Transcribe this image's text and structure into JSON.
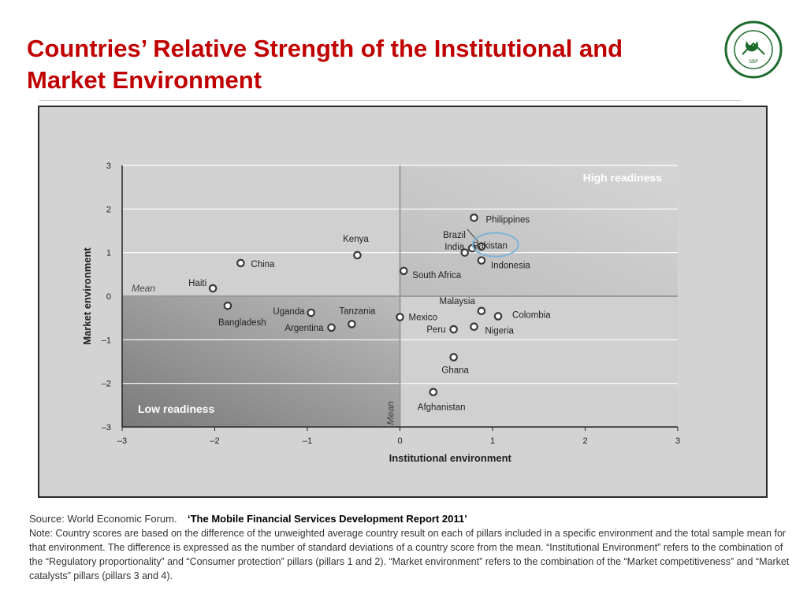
{
  "slide": {
    "title": "Countries’ Relative Strength of the Institutional and Market Environment",
    "seal_text": "STATE BANK OF PAKISTAN",
    "source_label": "Source: World Economic Forum.",
    "source_title": "‘The Mobile Financial Services Development Report 2011’",
    "note": "Note: Country scores are based on the difference of the unweighted average country result on each of pillars included in a specific environment and the total sample mean for that environment. The difference is expressed as the number of standard deviations of a country score from the mean. “Institutional Environment” refers to the combination of the “Regulatory proportionality” and “Consumer protection” pillars (pillars 1 and 2). “Market environment” refers to the combination of the “Market competitiveness” and “Market catalysts” pillars (pillars 3 and 4)."
  },
  "colors": {
    "title": "#c00000",
    "marker_fill": "#ffffff",
    "marker_stroke": "#3a3a3a",
    "highlight": "#7fb3d5",
    "high_quadrant": "#c9c9c9",
    "low_quadrant": "#8a8a8a"
  },
  "chart_data": {
    "type": "scatter",
    "xlabel": "Institutional environment",
    "ylabel": "Market environment",
    "xlim": [
      -3,
      3
    ],
    "ylim": [
      -3,
      3
    ],
    "x_ticks": [
      "–3",
      "–2",
      "–1",
      "0",
      "1",
      "2",
      "3"
    ],
    "y_ticks": [
      "3",
      "2",
      "1",
      "0",
      "–1",
      "–2",
      "–3"
    ],
    "grid": true,
    "mean_label": "Mean",
    "high_label": "High readiness",
    "low_label": "Low readiness",
    "highlighted_point": "Pakistan",
    "points": [
      {
        "label": "Philippines",
        "x": 0.8,
        "y": 1.8
      },
      {
        "label": "Brazil",
        "x": 0.88,
        "y": 1.14
      },
      {
        "label": "India",
        "x": 0.78,
        "y": 1.1
      },
      {
        "label": "Pakistan",
        "x": 0.7,
        "y": 1.0
      },
      {
        "label": "Indonesia",
        "x": 0.88,
        "y": 0.82
      },
      {
        "label": "Kenya",
        "x": -0.46,
        "y": 0.94
      },
      {
        "label": "China",
        "x": -1.72,
        "y": 0.76
      },
      {
        "label": "South Africa",
        "x": 0.04,
        "y": 0.58
      },
      {
        "label": "Haiti",
        "x": -2.02,
        "y": 0.18
      },
      {
        "label": "Bangladesh",
        "x": -1.86,
        "y": -0.22
      },
      {
        "label": "Uganda",
        "x": -0.96,
        "y": -0.38
      },
      {
        "label": "Tanzania",
        "x": -0.52,
        "y": -0.64
      },
      {
        "label": "Argentina",
        "x": -0.74,
        "y": -0.72
      },
      {
        "label": "Mexico",
        "x": 0.0,
        "y": -0.48
      },
      {
        "label": "Malaysia",
        "x": 0.88,
        "y": -0.34
      },
      {
        "label": "Colombia",
        "x": 1.06,
        "y": -0.46
      },
      {
        "label": "Nigeria",
        "x": 0.8,
        "y": -0.7
      },
      {
        "label": "Peru",
        "x": 0.58,
        "y": -0.76
      },
      {
        "label": "Ghana",
        "x": 0.58,
        "y": -1.4
      },
      {
        "label": "Afghanistan",
        "x": 0.36,
        "y": -2.2
      }
    ]
  }
}
